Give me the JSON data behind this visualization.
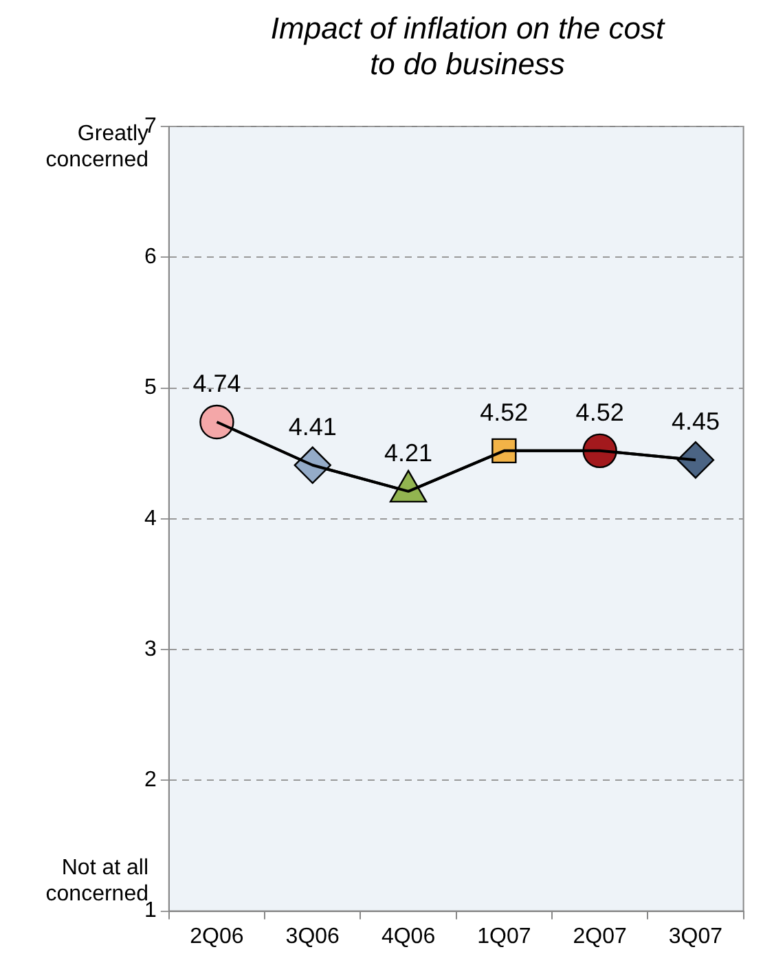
{
  "chart_data": {
    "type": "line",
    "title": "Impact of inflation on the cost to do business",
    "categories": [
      "2Q06",
      "3Q06",
      "4Q06",
      "1Q07",
      "2Q07",
      "3Q07"
    ],
    "series": [
      {
        "color": "#000000",
        "values": [
          4.74,
          4.41,
          4.21,
          4.52,
          4.52,
          4.45
        ],
        "colors": [
          "#f4a7a8",
          "#94abc8",
          "#92b450",
          "#f2b347",
          "#a3191d",
          "#4b6484"
        ],
        "marker": [
          "circle",
          "diamond",
          "triangle",
          "square",
          "circle",
          "diamond"
        ]
      }
    ],
    "ylim": [
      1,
      7
    ],
    "yticks": [
      1,
      2,
      3,
      4,
      5,
      6,
      7
    ],
    "grid": "y",
    "line_style": "solid",
    "data_labels": true,
    "legend": false,
    "annotations": [
      "Greatly concerned",
      "Not at all concerned"
    ]
  }
}
